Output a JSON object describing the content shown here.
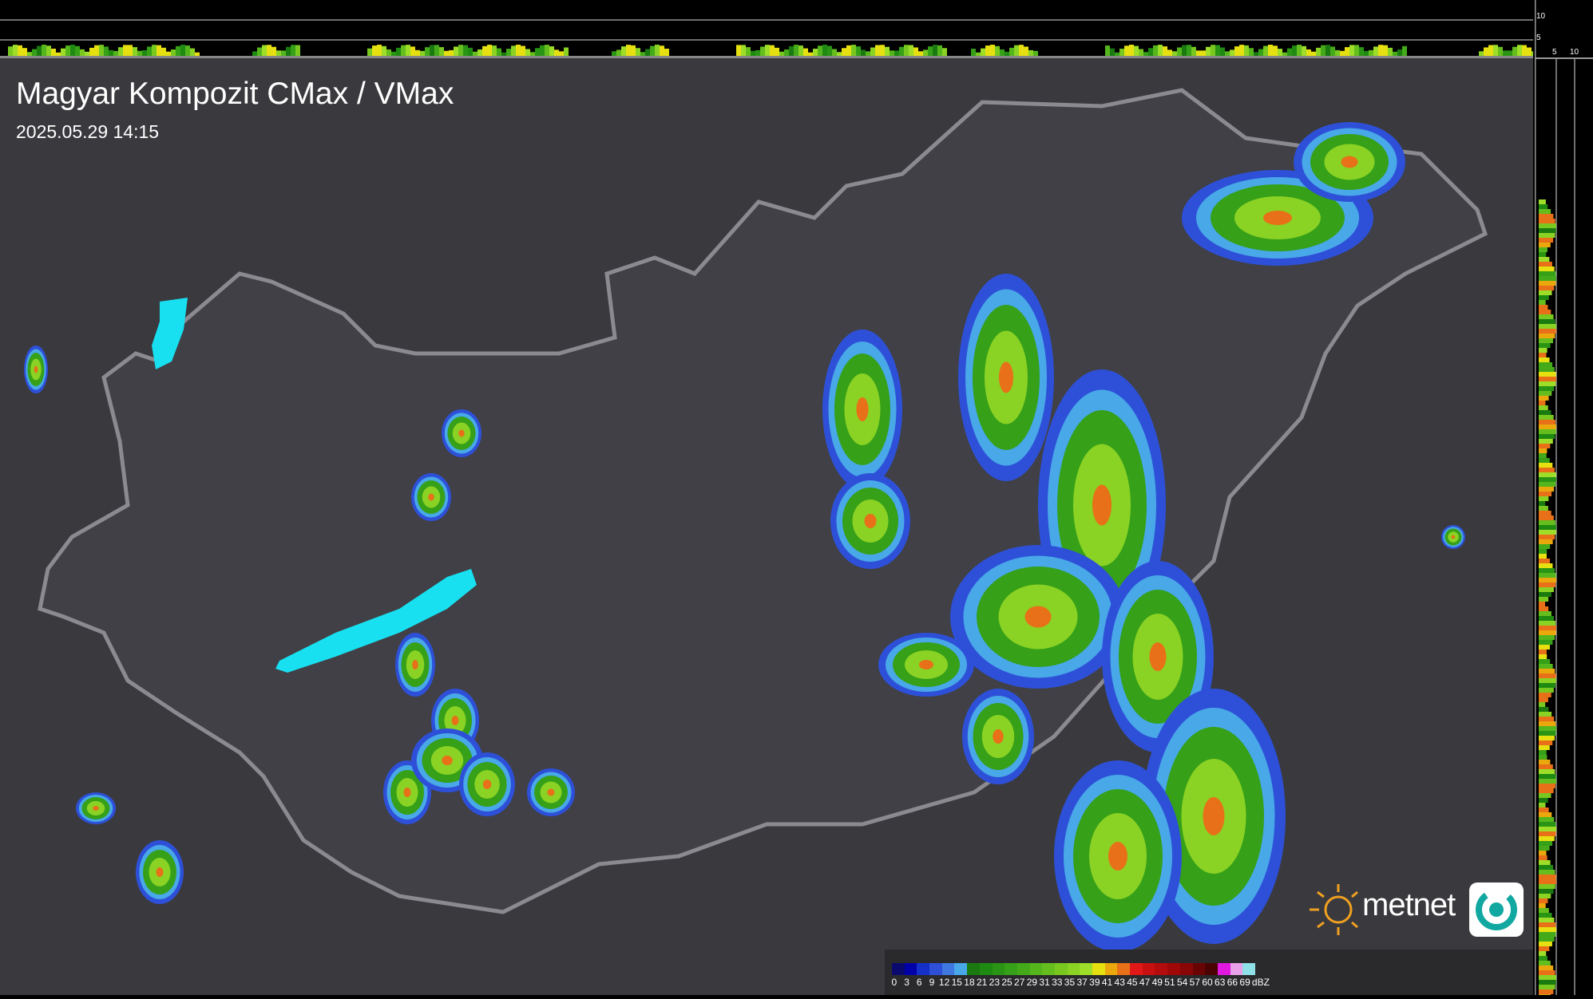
{
  "title": "Magyar Kompozit CMax / VMax",
  "timestamp": "2025.05.29 14:15",
  "side_axis": {
    "top_ticks": [
      "10",
      "5"
    ],
    "right_ticks": [
      "5",
      "10"
    ]
  },
  "logo": {
    "text": "metnet"
  },
  "legend": {
    "unit": "dBZ",
    "labels": [
      "0",
      "3",
      "6",
      "9",
      "12",
      "15",
      "18",
      "21",
      "23",
      "25",
      "27",
      "29",
      "31",
      "33",
      "35",
      "37",
      "39",
      "41",
      "43",
      "45",
      "47",
      "49",
      "51",
      "54",
      "57",
      "60",
      "63",
      "66",
      "69"
    ],
    "colors": [
      "#0a0a6e",
      "#0000a8",
      "#1530c8",
      "#2e50d8",
      "#3f78e0",
      "#48a8e8",
      "#1a7a10",
      "#1f8a12",
      "#2a9515",
      "#35a018",
      "#45aa1a",
      "#55b51c",
      "#65be1e",
      "#78c820",
      "#8ad224",
      "#9ede28",
      "#e6e010",
      "#eaa80c",
      "#e87018",
      "#e01818",
      "#c81010",
      "#b40c0c",
      "#a00808",
      "#880606",
      "#6a0404",
      "#4a0202",
      "#e018e0",
      "#e8a0e8",
      "#90e0e8"
    ]
  }
}
